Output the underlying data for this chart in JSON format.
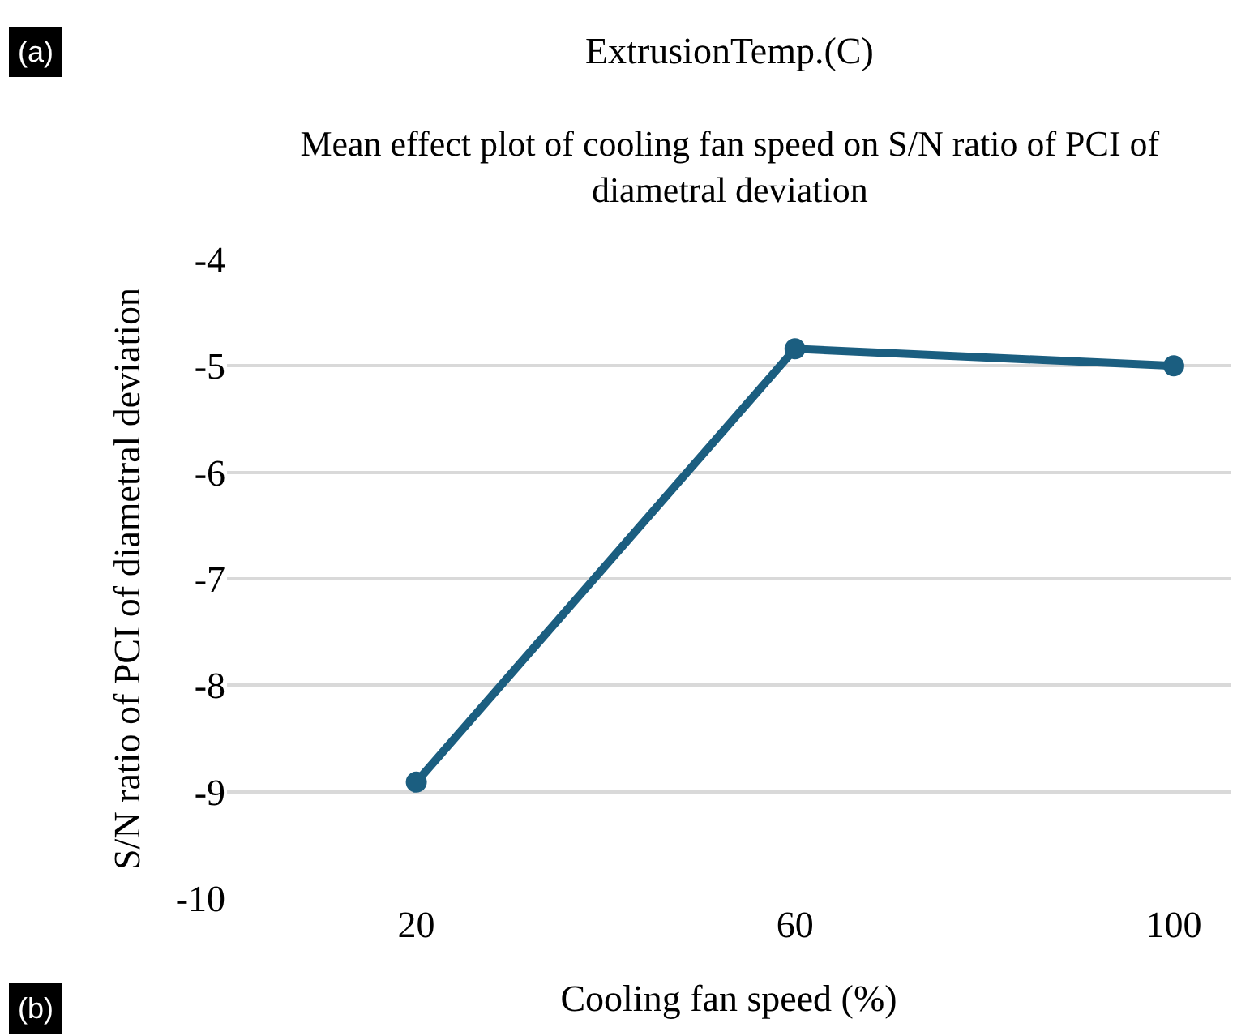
{
  "chart_data": {
    "type": "line",
    "title": "Mean effect plot of cooling fan speed on S/N ratio of PCI of diametral deviation",
    "xlabel": "Cooling fan speed (%)",
    "ylabel": "S/N ratio of PCI of diametral deviation",
    "categories": [
      "20",
      "60",
      "100"
    ],
    "series": [
      {
        "color": "#1b5e80",
        "values": [
          -8.91,
          -4.84,
          -5.0
        ]
      }
    ],
    "ylim": [
      -10,
      -4
    ],
    "yticks": [
      -10,
      -9,
      -8,
      -7,
      -6,
      -5,
      -4
    ],
    "grid": "y",
    "marker": "circle",
    "line_style": "solid",
    "annotations": [
      "(a)",
      "ExtrusionTemp.(C)",
      "(b)"
    ]
  }
}
